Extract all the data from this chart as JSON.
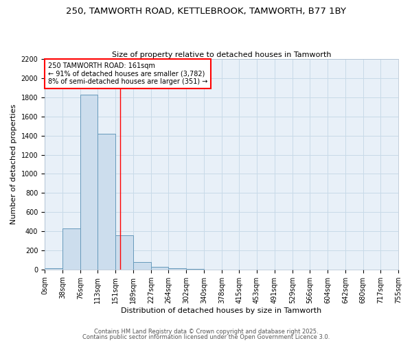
{
  "title1": "250, TAMWORTH ROAD, KETTLEBROOK, TAMWORTH, B77 1BY",
  "title2": "Size of property relative to detached houses in Tamworth",
  "xlabel": "Distribution of detached houses by size in Tamworth",
  "ylabel": "Number of detached properties",
  "bin_labels": [
    "0sqm",
    "38sqm",
    "76sqm",
    "113sqm",
    "151sqm",
    "189sqm",
    "227sqm",
    "264sqm",
    "302sqm",
    "340sqm",
    "378sqm",
    "415sqm",
    "453sqm",
    "491sqm",
    "529sqm",
    "566sqm",
    "604sqm",
    "642sqm",
    "680sqm",
    "717sqm",
    "755sqm"
  ],
  "bin_edges": [
    0,
    38,
    76,
    113,
    151,
    189,
    227,
    264,
    302,
    340,
    378,
    415,
    453,
    491,
    529,
    566,
    604,
    642,
    680,
    717,
    755
  ],
  "bar_heights": [
    15,
    430,
    1830,
    1420,
    360,
    80,
    25,
    15,
    5,
    0,
    0,
    0,
    0,
    0,
    0,
    0,
    0,
    0,
    0,
    0
  ],
  "bar_color": "#ccdded",
  "bar_edge_color": "#6699bb",
  "red_line_x": 161,
  "annotation_line1": "250 TAMWORTH ROAD: 161sqm",
  "annotation_line2": "← 91% of detached houses are smaller (3,782)",
  "annotation_line3": "8% of semi-detached houses are larger (351) →",
  "ylim": [
    0,
    2200
  ],
  "yticks": [
    0,
    200,
    400,
    600,
    800,
    1000,
    1200,
    1400,
    1600,
    1800,
    2000,
    2200
  ],
  "grid_color": "#c8dae8",
  "background_color": "#e8f0f8",
  "footer1": "Contains HM Land Registry data © Crown copyright and database right 2025.",
  "footer2": "Contains public sector information licensed under the Open Government Licence 3.0.",
  "title1_fontsize": 9.5,
  "title2_fontsize": 8,
  "axis_label_fontsize": 8,
  "tick_fontsize": 7,
  "annotation_fontsize": 7,
  "footer_fontsize": 6
}
